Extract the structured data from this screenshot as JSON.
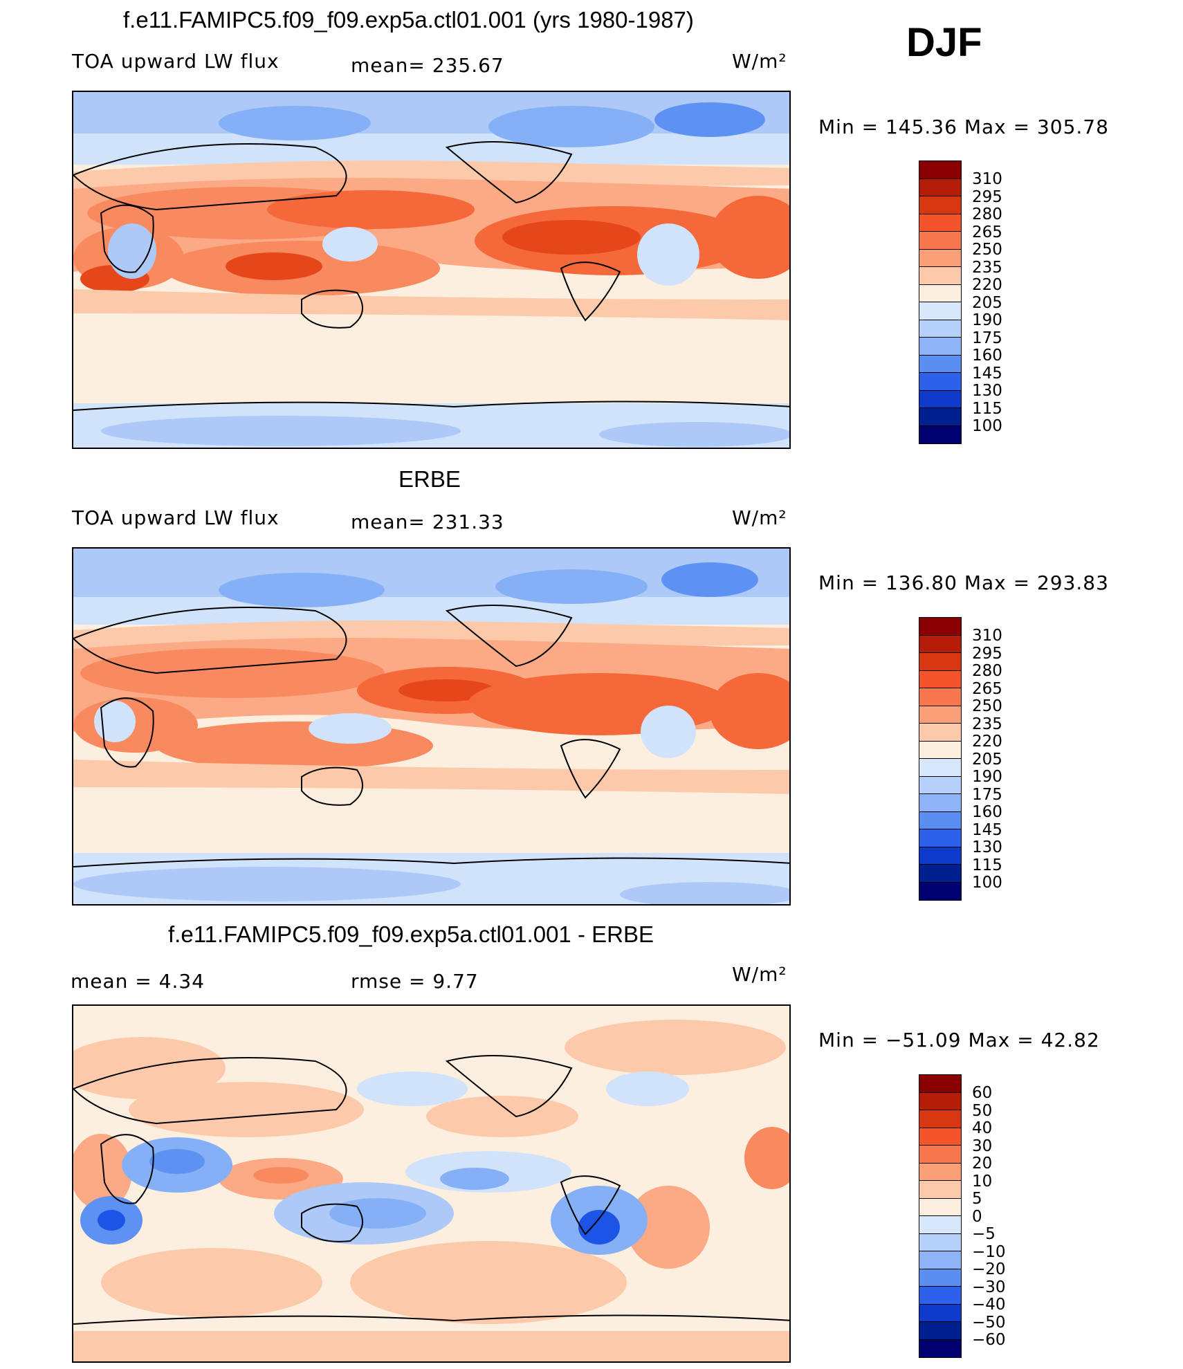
{
  "season": "DJF",
  "palette_warm_cool": [
    "#000080",
    "#001ba8",
    "#0a33c8",
    "#1c54e6",
    "#3a72ee",
    "#5d92f2",
    "#86b0f6",
    "#adc9f8",
    "#d1e3fb",
    "#fdefdf",
    "#fccaab",
    "#fbaa85",
    "#f9895f",
    "#f4683a",
    "#e5461a",
    "#c52b0c",
    "#8a0000"
  ],
  "panels": [
    {
      "id": "model",
      "title": "f.e11.FAMIPC5.f09_f09.exp5a.ctl01.001 (yrs 1980-1987)",
      "left_label": "TOA upward LW flux",
      "center_label": "mean= 235.67",
      "units": "W/m²",
      "minmax": "Min  =  145.36  Max  =  305.78",
      "colorbar_ticks": [
        "310",
        "295",
        "280",
        "265",
        "250",
        "235",
        "220",
        "205",
        "190",
        "175",
        "160",
        "145",
        "130",
        "115",
        "100"
      ]
    },
    {
      "id": "obs",
      "title": "ERBE",
      "left_label": "TOA upward LW flux",
      "center_label": "mean= 231.33",
      "units": "W/m²",
      "minmax": "Min  =  136.80  Max  =  293.83",
      "colorbar_ticks": [
        "310",
        "295",
        "280",
        "265",
        "250",
        "235",
        "220",
        "205",
        "190",
        "175",
        "160",
        "145",
        "130",
        "115",
        "100"
      ]
    },
    {
      "id": "diff",
      "title": "f.e11.FAMIPC5.f09_f09.exp5a.ctl01.001 - ERBE",
      "left_label": "mean  =     4.34",
      "center_label": "rmse  =     9.77",
      "units": "W/m²",
      "minmax": "Min  =  −51.09  Max  =    42.82",
      "colorbar_ticks": [
        "60",
        "50",
        "40",
        "30",
        "20",
        "10",
        "5",
        "0",
        "−5",
        "−10",
        "−20",
        "−30",
        "−40",
        "−50",
        "−60"
      ]
    }
  ]
}
